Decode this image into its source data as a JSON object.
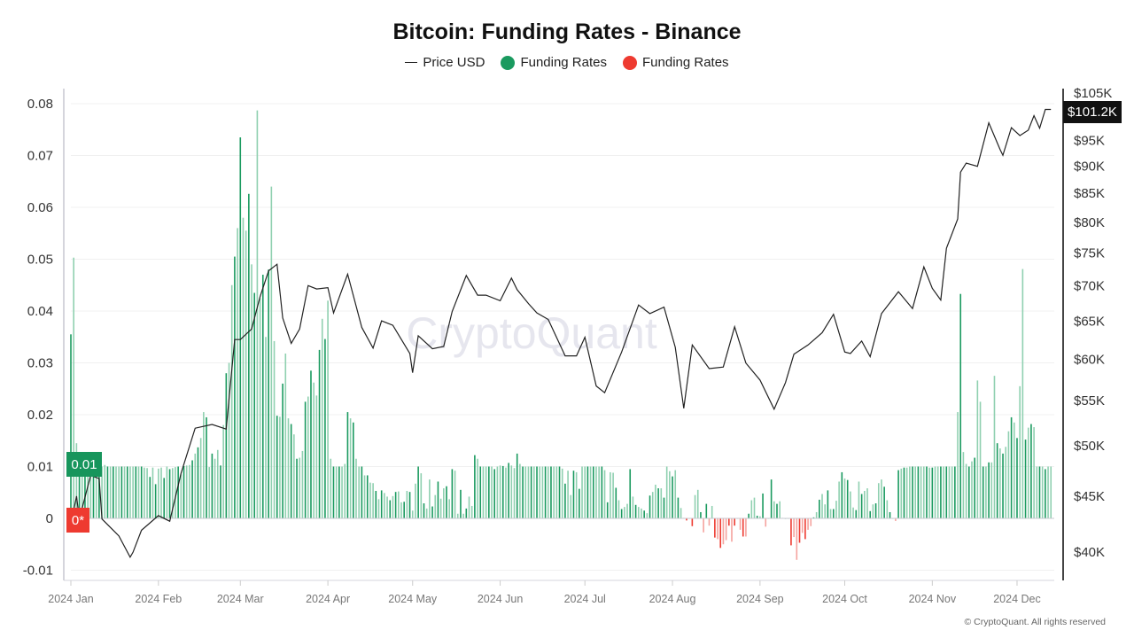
{
  "title": "Bitcoin: Funding Rates - Binance",
  "legend": [
    {
      "label": "Price USD",
      "color": "#222222",
      "marker": "line"
    },
    {
      "label": "Funding Rates",
      "color": "#1a9a5f",
      "marker": "dot"
    },
    {
      "label": "Funding Rates",
      "color": "#ee3a30",
      "marker": "dot"
    }
  ],
  "watermark": "CryptoQuant",
  "copyright": "© CryptoQuant. All rights reserved",
  "badges": {
    "price_last": "$101.2K",
    "funding_ref": "0.01",
    "zero": "0*"
  },
  "colors": {
    "positive": "#1a9a5f",
    "positive_light": "#8fd0b0",
    "negative": "#ee3a30",
    "negative_light": "#f5a39e",
    "price": "#222222",
    "badge_price": "#111111"
  },
  "chart_data": {
    "type": "bar+line",
    "title": "Bitcoin: Funding Rates - Binance",
    "x_ticks": [
      "2024 Jan",
      "2024 Feb",
      "2024 Mar",
      "2024 Apr",
      "2024 May",
      "2024 Jun",
      "2024 Jul",
      "2024 Aug",
      "2024 Sep",
      "2024 Oct",
      "2024 Nov",
      "2024 Dec"
    ],
    "left_axis": {
      "ticks": [
        "0.08",
        "0.07",
        "0.06",
        "0.05",
        "0.04",
        "0.03",
        "0.02",
        "0.01",
        "0",
        "-0.01"
      ],
      "ylim": [
        -0.012,
        0.083
      ]
    },
    "right_axis": {
      "scale": "log",
      "ticks": [
        "$105K",
        "$95K",
        "$90K",
        "$85K",
        "$80K",
        "$75K",
        "$70K",
        "$65K",
        "$60K",
        "$55K",
        "$50K",
        "$45K",
        "$40K"
      ],
      "ylim": [
        38500,
        106000
      ]
    },
    "grid": "horizontal",
    "legend_position": "top",
    "funding_rates_daily": {
      "2024-01": [
        0.0355,
        0.0503,
        0.0145,
        0.01,
        0.01,
        0.01,
        0.01,
        0.01,
        0.01,
        0.01,
        0.01,
        0.01,
        0.0103,
        0.01,
        0.01,
        0.01,
        0.01,
        0.01,
        0.01,
        0.01,
        0.01,
        0.01,
        0.01,
        0.01,
        0.01,
        0.01,
        0.0098,
        0.0097,
        0.008,
        0.0098,
        0.0066
      ],
      "2024-02": [
        0.0096,
        0.0098,
        0.0078,
        0.01,
        0.0095,
        0.0097,
        0.0099,
        0.01,
        0.0085,
        0.0101,
        0.0102,
        0.0103,
        0.0112,
        0.0125,
        0.0137,
        0.0155,
        0.0205,
        0.0195,
        0.0099,
        0.0125,
        0.0115,
        0.0132,
        0.0102,
        0.018,
        0.028,
        0.03,
        0.045,
        0.0505,
        0.056
      ],
      "2024-03": [
        0.0735,
        0.058,
        0.0555,
        0.0626,
        0.049,
        0.0435,
        0.0787,
        0.0425,
        0.047,
        0.035,
        0.048,
        0.064,
        0.0342,
        0.0198,
        0.0196,
        0.026,
        0.0318,
        0.0193,
        0.0182,
        0.0162,
        0.0115,
        0.0117,
        0.013,
        0.0225,
        0.0235,
        0.0285,
        0.0262,
        0.0237,
        0.0325,
        0.0385,
        0.0346
      ],
      "2024-04": [
        0.042,
        0.0115,
        0.01,
        0.01,
        0.01,
        0.01,
        0.0105,
        0.0205,
        0.0193,
        0.0185,
        0.0115,
        0.01,
        0.01,
        0.0083,
        0.0083,
        0.0069,
        0.0068,
        0.0053,
        0.0037,
        0.0054,
        0.0049,
        0.0042,
        0.0035,
        0.0043,
        0.0051,
        0.0052,
        0.0031,
        0.0032,
        0.0053,
        0.0051
      ],
      "2024-05": [
        0.0015,
        0.0067,
        0.01,
        0.0087,
        0.0029,
        0.0019,
        0.0075,
        0.0023,
        0.0045,
        0.0071,
        0.0038,
        0.0058,
        0.0062,
        0.0037,
        0.0095,
        0.0092,
        0.0009,
        0.0055,
        0.0009,
        0.0019,
        0.0042,
        0.0024,
        0.0122,
        0.0115,
        0.01,
        0.01,
        0.01,
        0.01,
        0.01,
        0.0095,
        0.01
      ],
      "2024-06": [
        0.0102,
        0.0101,
        0.0098,
        0.0107,
        0.0102,
        0.0097,
        0.0125,
        0.0105,
        0.01,
        0.01,
        0.01,
        0.01,
        0.01,
        0.01,
        0.01,
        0.01,
        0.01,
        0.01,
        0.01,
        0.01,
        0.01,
        0.01,
        0.0096,
        0.0067,
        0.0092,
        0.0045,
        0.0092,
        0.0089,
        0.0057,
        0.01
      ],
      "2024-07": [
        0.01,
        0.01,
        0.01,
        0.01,
        0.01,
        0.01,
        0.01,
        0.0093,
        0.0031,
        0.0089,
        0.0088,
        0.0059,
        0.0035,
        0.0018,
        0.0022,
        0.0028,
        0.0095,
        0.0042,
        0.0026,
        0.0022,
        0.0019,
        0.0015,
        0.001,
        0.0044,
        0.0051,
        0.0065,
        0.0058,
        0.0058,
        0.004,
        0.01,
        0.0091
      ],
      "2024-08": [
        0.0081,
        0.0093,
        0.004,
        0.002,
        0.0001,
        -0.0004,
        0.0,
        -0.0015,
        0.0045,
        0.0055,
        0.0012,
        -0.0027,
        0.0028,
        -0.0014,
        0.0024,
        -0.0037,
        -0.004,
        -0.0057,
        -0.005,
        -0.0042,
        -0.0014,
        -0.0045,
        -0.0014,
        0.0,
        -0.0022,
        -0.0035,
        -0.0035,
        0.0009,
        0.0035,
        0.004,
        0.0005
      ],
      "2024-09": [
        0.0004,
        0.0048,
        -0.0016,
        0.0,
        0.0075,
        0.0033,
        0.0028,
        0.0033,
        0.0001,
        0.0,
        0.0,
        -0.0052,
        -0.0036,
        -0.008,
        -0.0047,
        -0.0028,
        -0.004,
        -0.0022,
        -0.0015,
        0.0002,
        0.0012,
        0.0036,
        0.0047,
        0.0027,
        0.0054,
        0.0018,
        0.0018,
        0.0034,
        0.0071,
        0.0089
      ],
      "2024-10": [
        0.0077,
        0.0074,
        0.0052,
        0.0021,
        0.0016,
        0.0071,
        0.0047,
        0.0053,
        0.0058,
        0.0014,
        0.0027,
        0.0029,
        0.0068,
        0.0075,
        0.0061,
        0.0035,
        0.0012,
        0.0,
        -0.0005,
        0.0093,
        0.0096,
        0.0098,
        0.0098,
        0.01,
        0.01,
        0.01,
        0.01,
        0.01,
        0.01,
        0.01,
        0.0098
      ],
      "2024-11": [
        0.0098,
        0.01,
        0.01,
        0.01,
        0.01,
        0.01,
        0.01,
        0.01,
        0.01,
        0.0205,
        0.0433,
        0.0128,
        0.0105,
        0.01,
        0.011,
        0.0117,
        0.0266,
        0.0225,
        0.01,
        0.01,
        0.0108,
        0.0108,
        0.0275,
        0.0145,
        0.0135,
        0.0125,
        0.0138,
        0.0168,
        0.0195,
        0.0185
      ],
      "2024-12": [
        0.0155,
        0.0255,
        0.0481,
        0.0152,
        0.0175,
        0.0182,
        0.0176,
        0.01,
        0.01,
        0.01,
        0.0095,
        0.01,
        0.01
      ]
    },
    "price_usd": [
      [
        "2024-01-01",
        42300
      ],
      [
        "2024-01-03",
        44900
      ],
      [
        "2024-01-04",
        42800
      ],
      [
        "2024-01-08",
        46900
      ],
      [
        "2024-01-11",
        46600
      ],
      [
        "2024-01-12",
        42800
      ],
      [
        "2024-01-18",
        41300
      ],
      [
        "2024-01-22",
        39500
      ],
      [
        "2024-01-23",
        39900
      ],
      [
        "2024-01-26",
        41800
      ],
      [
        "2024-02-01",
        43100
      ],
      [
        "2024-02-05",
        42600
      ],
      [
        "2024-02-09",
        47100
      ],
      [
        "2024-02-14",
        51800
      ],
      [
        "2024-02-20",
        52200
      ],
      [
        "2024-02-25",
        51700
      ],
      [
        "2024-02-28",
        62400
      ],
      [
        "2024-03-01",
        62400
      ],
      [
        "2024-03-05",
        63800
      ],
      [
        "2024-03-08",
        68300
      ],
      [
        "2024-03-11",
        72100
      ],
      [
        "2024-03-14",
        73100
      ],
      [
        "2024-03-16",
        65300
      ],
      [
        "2024-03-19",
        61900
      ],
      [
        "2024-03-22",
        63800
      ],
      [
        "2024-03-25",
        69900
      ],
      [
        "2024-03-28",
        69400
      ],
      [
        "2024-04-01",
        69600
      ],
      [
        "2024-04-03",
        66000
      ],
      [
        "2024-04-08",
        71600
      ],
      [
        "2024-04-13",
        64000
      ],
      [
        "2024-04-17",
        61300
      ],
      [
        "2024-04-20",
        64900
      ],
      [
        "2024-04-24",
        64300
      ],
      [
        "2024-04-30",
        60600
      ],
      [
        "2024-05-01",
        58200
      ],
      [
        "2024-05-03",
        62900
      ],
      [
        "2024-05-08",
        61200
      ],
      [
        "2024-05-12",
        61500
      ],
      [
        "2024-05-15",
        66200
      ],
      [
        "2024-05-20",
        71400
      ],
      [
        "2024-05-24",
        68500
      ],
      [
        "2024-05-27",
        68500
      ],
      [
        "2024-06-01",
        67700
      ],
      [
        "2024-06-05",
        71000
      ],
      [
        "2024-06-07",
        69300
      ],
      [
        "2024-06-11",
        67300
      ],
      [
        "2024-06-14",
        66000
      ],
      [
        "2024-06-18",
        65100
      ],
      [
        "2024-06-24",
        60300
      ],
      [
        "2024-06-28",
        60300
      ],
      [
        "2024-07-01",
        62700
      ],
      [
        "2024-07-05",
        56600
      ],
      [
        "2024-07-08",
        55800
      ],
      [
        "2024-07-14",
        60800
      ],
      [
        "2024-07-20",
        67100
      ],
      [
        "2024-07-24",
        65900
      ],
      [
        "2024-07-29",
        66800
      ],
      [
        "2024-08-02",
        61400
      ],
      [
        "2024-08-05",
        54000
      ],
      [
        "2024-08-08",
        61700
      ],
      [
        "2024-08-14",
        58700
      ],
      [
        "2024-08-19",
        58900
      ],
      [
        "2024-08-23",
        64100
      ],
      [
        "2024-08-27",
        59400
      ],
      [
        "2024-09-01",
        57300
      ],
      [
        "2024-09-06",
        53900
      ],
      [
        "2024-09-10",
        57000
      ],
      [
        "2024-09-13",
        60500
      ],
      [
        "2024-09-18",
        61700
      ],
      [
        "2024-09-23",
        63300
      ],
      [
        "2024-09-27",
        65800
      ],
      [
        "2024-10-01",
        60800
      ],
      [
        "2024-10-03",
        60600
      ],
      [
        "2024-10-07",
        62200
      ],
      [
        "2024-10-10",
        60200
      ],
      [
        "2024-10-14",
        65900
      ],
      [
        "2024-10-20",
        69000
      ],
      [
        "2024-10-25",
        66600
      ],
      [
        "2024-10-29",
        72700
      ],
      [
        "2024-11-01",
        69500
      ],
      [
        "2024-11-04",
        67800
      ],
      [
        "2024-11-06",
        75600
      ],
      [
        "2024-11-10",
        80400
      ],
      [
        "2024-11-11",
        88700
      ],
      [
        "2024-11-13",
        90400
      ],
      [
        "2024-11-17",
        89800
      ],
      [
        "2024-11-21",
        98400
      ],
      [
        "2024-11-25",
        93000
      ],
      [
        "2024-11-26",
        91900
      ],
      [
        "2024-11-29",
        97400
      ],
      [
        "2024-12-02",
        95800
      ],
      [
        "2024-12-05",
        96900
      ],
      [
        "2024-12-07",
        99900
      ],
      [
        "2024-12-09",
        97300
      ],
      [
        "2024-12-11",
        101200
      ],
      [
        "2024-12-13",
        101200
      ]
    ]
  }
}
